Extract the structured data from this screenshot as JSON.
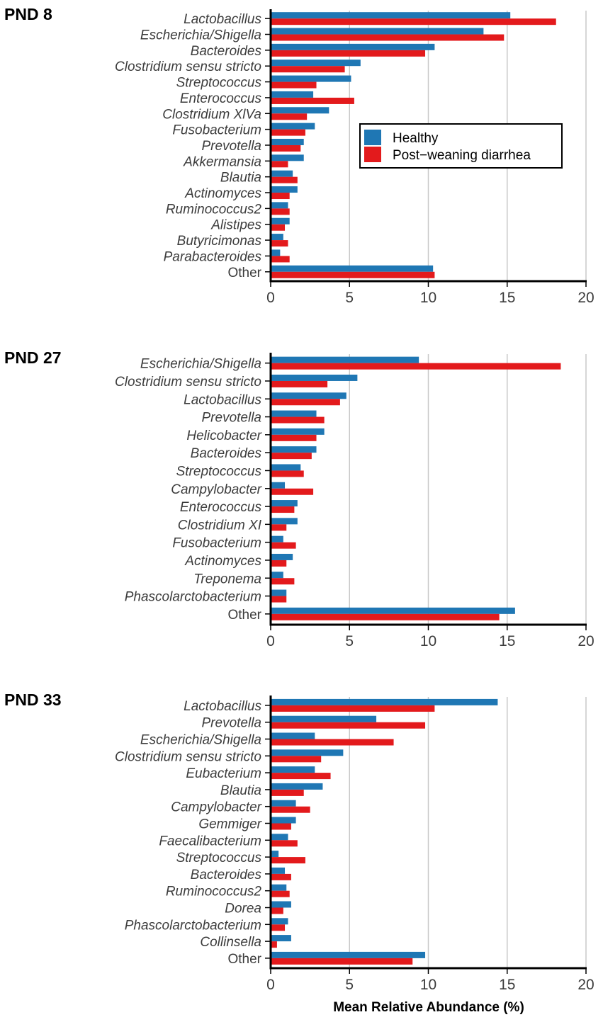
{
  "figure": {
    "xlabel": "Mean Relative Abundance (%)",
    "legend": {
      "position": "inside-right of first panel"
    }
  },
  "chart_data": [
    {
      "type": "bar",
      "orientation": "horizontal",
      "title": "PND 8",
      "xlim": [
        0,
        20
      ],
      "xticks": [
        0,
        5,
        10,
        15,
        20
      ],
      "categories": [
        "Lactobacillus",
        "Escherichia/Shigella",
        "Bacteroides",
        "Clostridium sensu stricto",
        "Streptococcus",
        "Enterococcus",
        "Clostridium XlVa",
        "Fusobacterium",
        "Prevotella",
        "Akkermansia",
        "Blautia",
        "Actinomyces",
        "Ruminococcus2",
        "Alistipes",
        "Butyricimonas",
        "Parabacteroides",
        "Other"
      ],
      "series": [
        {
          "name": "Healthy",
          "color": "#1f77b4",
          "values": [
            15.2,
            13.5,
            10.4,
            5.7,
            5.1,
            2.7,
            3.7,
            2.8,
            2.1,
            2.1,
            1.4,
            1.7,
            1.1,
            1.2,
            0.8,
            0.6,
            10.3
          ]
        },
        {
          "name": "Post−weaning diarrhea",
          "color": "#e31a1c",
          "values": [
            18.1,
            14.8,
            9.8,
            4.7,
            2.9,
            5.3,
            2.3,
            2.2,
            1.9,
            1.1,
            1.7,
            1.2,
            1.2,
            0.9,
            1.1,
            1.2,
            10.4
          ]
        }
      ]
    },
    {
      "type": "bar",
      "orientation": "horizontal",
      "title": "PND 27",
      "xlim": [
        0,
        20
      ],
      "xticks": [
        0,
        5,
        10,
        15,
        20
      ],
      "categories": [
        "Escherichia/Shigella",
        "Clostridium sensu stricto",
        "Lactobacillus",
        "Prevotella",
        "Helicobacter",
        "Bacteroides",
        "Streptococcus",
        "Campylobacter",
        "Enterococcus",
        "Clostridium XI",
        "Fusobacterium",
        "Actinomyces",
        "Treponema",
        "Phascolarctobacterium",
        "Other"
      ],
      "series": [
        {
          "name": "Healthy",
          "color": "#1f77b4",
          "values": [
            9.4,
            5.5,
            4.8,
            2.9,
            3.4,
            2.9,
            1.9,
            0.9,
            1.7,
            1.7,
            0.8,
            1.4,
            0.8,
            1.0,
            15.5
          ]
        },
        {
          "name": "Post−weaning diarrhea",
          "color": "#e31a1c",
          "values": [
            18.4,
            3.6,
            4.4,
            3.4,
            2.9,
            2.6,
            2.1,
            2.7,
            1.5,
            1.0,
            1.6,
            1.0,
            1.5,
            1.0,
            14.5
          ]
        }
      ]
    },
    {
      "type": "bar",
      "orientation": "horizontal",
      "title": "PND 33",
      "xlim": [
        0,
        20
      ],
      "xticks": [
        0,
        5,
        10,
        15,
        20
      ],
      "categories": [
        "Lactobacillus",
        "Prevotella",
        "Escherichia/Shigella",
        "Clostridium sensu stricto",
        "Eubacterium",
        "Blautia",
        "Campylobacter",
        "Gemmiger",
        "Faecalibacterium",
        "Streptococcus",
        "Bacteroides",
        "Ruminococcus2",
        "Dorea",
        "Phascolarctobacterium",
        "Collinsella",
        "Other"
      ],
      "series": [
        {
          "name": "Healthy",
          "color": "#1f77b4",
          "values": [
            14.4,
            6.7,
            2.8,
            4.6,
            2.8,
            3.3,
            1.6,
            1.6,
            1.1,
            0.5,
            0.9,
            1.0,
            1.3,
            1.1,
            1.3,
            9.8
          ]
        },
        {
          "name": "Post−weaning diarrhea",
          "color": "#e31a1c",
          "values": [
            10.4,
            9.8,
            7.8,
            3.2,
            3.8,
            2.1,
            2.5,
            1.3,
            1.7,
            2.2,
            1.3,
            1.2,
            0.8,
            0.9,
            0.4,
            9.0
          ]
        }
      ]
    }
  ]
}
